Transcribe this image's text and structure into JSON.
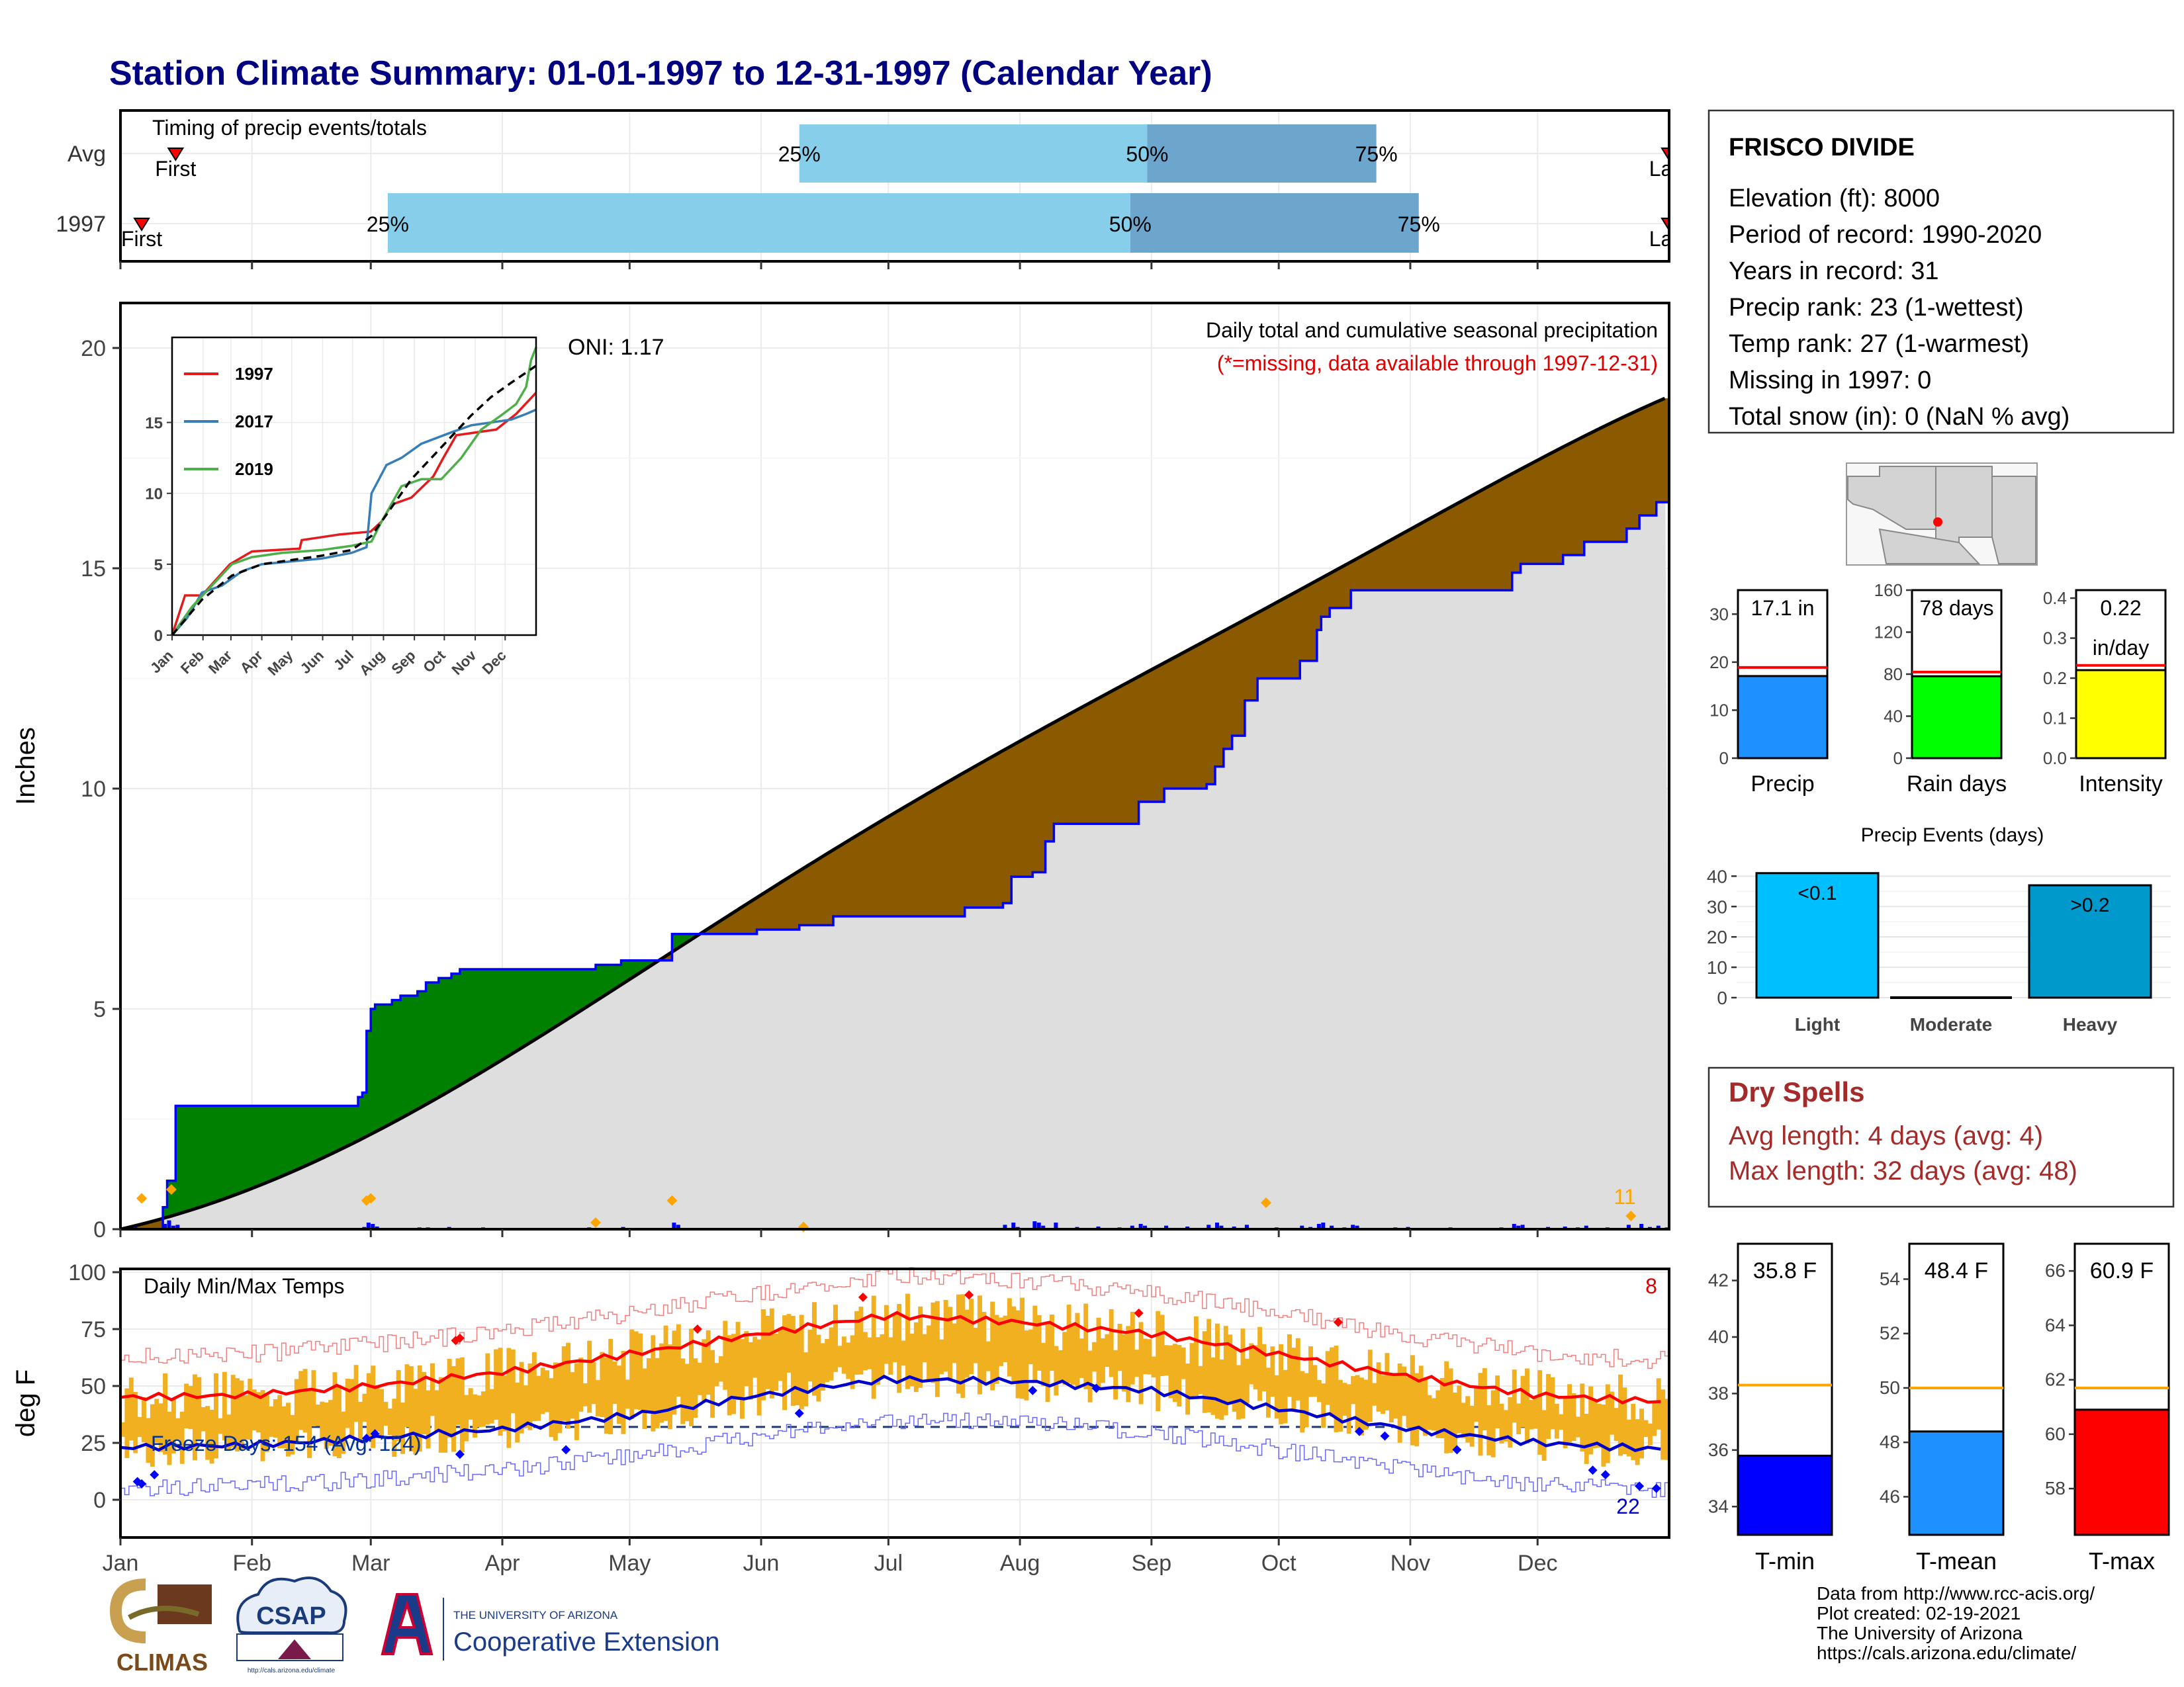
{
  "title": "Station Climate Summary: 01-01-1997 to 12-31-1997 (Calendar Year)",
  "months": [
    "Jan",
    "Feb",
    "Mar",
    "Apr",
    "May",
    "Jun",
    "Jul",
    "Aug",
    "Sep",
    "Oct",
    "Nov",
    "Dec"
  ],
  "timing": {
    "label": "Timing of precip events/totals",
    "rows": [
      {
        "name": "Avg",
        "first_day": 13,
        "last_day": 365,
        "q25": 160,
        "q50": 242,
        "q75": 296,
        "first_label": "First",
        "last_label": "Last"
      },
      {
        "name": "1997",
        "first_day": 5,
        "last_day": 365,
        "q25": 63,
        "q50": 238,
        "q75": 306,
        "first_label": "First",
        "last_label": "Last"
      }
    ],
    "q_labels": [
      "25%",
      "50%",
      "75%"
    ]
  },
  "precip": {
    "ylabel": "Inches",
    "yticks": [
      0,
      5,
      10,
      15,
      20
    ],
    "note": "Daily total and cumulative seasonal precipitation",
    "missing_note": "(*=missing, data available through 1997-12-31)",
    "oni": "ONI: 1.17",
    "count_label": "11",
    "observed_cum": [
      [
        0,
        0
      ],
      [
        10,
        0.5
      ],
      [
        11,
        1.1
      ],
      [
        12,
        1.1
      ],
      [
        13,
        2.8
      ],
      [
        30,
        2.8
      ],
      [
        55,
        2.8
      ],
      [
        56,
        3.0
      ],
      [
        57,
        3.1
      ],
      [
        58,
        4.5
      ],
      [
        59,
        5.0
      ],
      [
        60,
        5.1
      ],
      [
        64,
        5.2
      ],
      [
        66,
        5.3
      ],
      [
        70,
        5.4
      ],
      [
        72,
        5.6
      ],
      [
        75,
        5.7
      ],
      [
        78,
        5.8
      ],
      [
        80,
        5.9
      ],
      [
        95,
        5.9
      ],
      [
        110,
        5.9
      ],
      [
        112,
        6.0
      ],
      [
        118,
        6.1
      ],
      [
        128,
        6.1
      ],
      [
        130,
        6.7
      ],
      [
        145,
        6.7
      ],
      [
        150,
        6.8
      ],
      [
        160,
        6.9
      ],
      [
        168,
        7.1
      ],
      [
        185,
        7.1
      ],
      [
        199,
        7.3
      ],
      [
        205,
        7.3
      ],
      [
        208,
        7.4
      ],
      [
        210,
        8.0
      ],
      [
        215,
        8.1
      ],
      [
        218,
        8.8
      ],
      [
        220,
        9.2
      ],
      [
        225,
        9.2
      ],
      [
        238,
        9.2
      ],
      [
        240,
        9.7
      ],
      [
        246,
        10.0
      ],
      [
        256,
        10.1
      ],
      [
        258,
        10.5
      ],
      [
        260,
        10.9
      ],
      [
        262,
        11.2
      ],
      [
        265,
        12.0
      ],
      [
        268,
        12.5
      ],
      [
        272,
        12.5
      ],
      [
        278,
        12.9
      ],
      [
        282,
        13.6
      ],
      [
        283,
        13.9
      ],
      [
        285,
        14.1
      ],
      [
        290,
        14.5
      ],
      [
        325,
        14.5
      ],
      [
        328,
        14.9
      ],
      [
        330,
        15.1
      ],
      [
        340,
        15.3
      ],
      [
        345,
        15.6
      ],
      [
        355,
        15.9
      ],
      [
        358,
        16.2
      ],
      [
        362,
        16.5
      ],
      [
        365,
        17.1
      ]
    ],
    "avg_end": 18.9,
    "year_end": 17.1,
    "daily_bars": [
      [
        3,
        0.05
      ],
      [
        10,
        0.12
      ],
      [
        11,
        0.2
      ],
      [
        12,
        0.08
      ],
      [
        13,
        0.1
      ],
      [
        45,
        0.03
      ],
      [
        47,
        0.02
      ],
      [
        57,
        0.05
      ],
      [
        58,
        0.15
      ],
      [
        59,
        0.12
      ],
      [
        60,
        0.06
      ],
      [
        62,
        0.03
      ],
      [
        64,
        0.03
      ],
      [
        68,
        0.03
      ],
      [
        70,
        0.04
      ],
      [
        72,
        0.04
      ],
      [
        75,
        0.02
      ],
      [
        77,
        0.05
      ],
      [
        80,
        0.03
      ],
      [
        85,
        0.04
      ],
      [
        88,
        0.03
      ],
      [
        110,
        0.04
      ],
      [
        112,
        0.02
      ],
      [
        118,
        0.05
      ],
      [
        120,
        0.03
      ],
      [
        129,
        0.02
      ],
      [
        130,
        0.15
      ],
      [
        131,
        0.1
      ],
      [
        150,
        0.03
      ],
      [
        160,
        0.04
      ],
      [
        163,
        0.02
      ],
      [
        170,
        0.02
      ],
      [
        175,
        0.02
      ],
      [
        180,
        0.03
      ],
      [
        185,
        0.03
      ],
      [
        190,
        0.03
      ],
      [
        195,
        0.02
      ],
      [
        208,
        0.1
      ],
      [
        210,
        0.15
      ],
      [
        211,
        0.05
      ],
      [
        215,
        0.18
      ],
      [
        216,
        0.15
      ],
      [
        217,
        0.08
      ],
      [
        220,
        0.15
      ],
      [
        225,
        0.05
      ],
      [
        230,
        0.06
      ],
      [
        235,
        0.04
      ],
      [
        238,
        0.08
      ],
      [
        240,
        0.12
      ],
      [
        241,
        0.08
      ],
      [
        246,
        0.08
      ],
      [
        251,
        0.06
      ],
      [
        256,
        0.1
      ],
      [
        258,
        0.15
      ],
      [
        259,
        0.08
      ],
      [
        262,
        0.06
      ],
      [
        265,
        0.1
      ],
      [
        268,
        0.03
      ],
      [
        272,
        0.04
      ],
      [
        276,
        0.03
      ],
      [
        278,
        0.08
      ],
      [
        280,
        0.05
      ],
      [
        282,
        0.12
      ],
      [
        283,
        0.15
      ],
      [
        285,
        0.08
      ],
      [
        288,
        0.04
      ],
      [
        290,
        0.1
      ],
      [
        291,
        0.08
      ],
      [
        300,
        0.04
      ],
      [
        303,
        0.05
      ],
      [
        310,
        0.03
      ],
      [
        313,
        0.04
      ],
      [
        316,
        0.03
      ],
      [
        320,
        0.02
      ],
      [
        325,
        0.04
      ],
      [
        328,
        0.12
      ],
      [
        329,
        0.08
      ],
      [
        330,
        0.1
      ],
      [
        332,
        0.03
      ],
      [
        336,
        0.05
      ],
      [
        340,
        0.06
      ],
      [
        343,
        0.04
      ],
      [
        345,
        0.08
      ],
      [
        350,
        0.04
      ],
      [
        355,
        0.1
      ],
      [
        358,
        0.12
      ],
      [
        360,
        0.05
      ],
      [
        362,
        0.08
      ],
      [
        364,
        0.04
      ]
    ],
    "flag_days": [
      [
        5,
        0.7
      ],
      [
        12,
        0.9
      ],
      [
        58,
        0.65
      ],
      [
        59,
        0.7
      ],
      [
        112,
        0.15
      ],
      [
        130,
        0.65
      ],
      [
        161,
        0.05
      ],
      [
        270,
        0.6
      ],
      [
        356,
        0.3
      ]
    ]
  },
  "inset": {
    "yticks": [
      0,
      5,
      10,
      15
    ],
    "series": [
      {
        "name": "1997",
        "color": "#e41a1c",
        "points": [
          [
            0,
            0
          ],
          [
            13,
            2.8
          ],
          [
            30,
            2.8
          ],
          [
            58,
            5.0
          ],
          [
            80,
            5.9
          ],
          [
            128,
            6.1
          ],
          [
            130,
            6.7
          ],
          [
            168,
            7.1
          ],
          [
            199,
            7.3
          ],
          [
            210,
            8.0
          ],
          [
            220,
            9.2
          ],
          [
            240,
            9.7
          ],
          [
            262,
            11.2
          ],
          [
            272,
            12.5
          ],
          [
            285,
            14.1
          ],
          [
            325,
            14.5
          ],
          [
            345,
            15.6
          ],
          [
            365,
            17.1
          ]
        ]
      },
      {
        "name": "2017",
        "color": "#377eb8",
        "points": [
          [
            0,
            0
          ],
          [
            15,
            1.2
          ],
          [
            30,
            3.0
          ],
          [
            50,
            3.5
          ],
          [
            70,
            4.5
          ],
          [
            90,
            5.0
          ],
          [
            150,
            5.4
          ],
          [
            180,
            5.8
          ],
          [
            195,
            6.2
          ],
          [
            200,
            10.0
          ],
          [
            215,
            12.0
          ],
          [
            230,
            12.5
          ],
          [
            250,
            13.5
          ],
          [
            280,
            14.3
          ],
          [
            300,
            14.8
          ],
          [
            320,
            15.0
          ],
          [
            340,
            15.2
          ],
          [
            355,
            15.6
          ],
          [
            365,
            15.9
          ]
        ]
      },
      {
        "name": "2019",
        "color": "#4daf4a",
        "points": [
          [
            0,
            0
          ],
          [
            20,
            2.0
          ],
          [
            40,
            3.5
          ],
          [
            60,
            5.0
          ],
          [
            80,
            5.5
          ],
          [
            110,
            5.8
          ],
          [
            150,
            6.0
          ],
          [
            180,
            6.3
          ],
          [
            200,
            6.6
          ],
          [
            210,
            8.0
          ],
          [
            230,
            10.5
          ],
          [
            250,
            11.0
          ],
          [
            270,
            11.0
          ],
          [
            290,
            12.5
          ],
          [
            310,
            14.5
          ],
          [
            330,
            15.5
          ],
          [
            345,
            16.3
          ],
          [
            355,
            17.5
          ],
          [
            360,
            19.4
          ],
          [
            365,
            20.3
          ]
        ]
      }
    ],
    "avg_points": [
      [
        0,
        0
      ],
      [
        30,
        2.5
      ],
      [
        60,
        4.2
      ],
      [
        90,
        5.0
      ],
      [
        120,
        5.3
      ],
      [
        150,
        5.6
      ],
      [
        180,
        6.0
      ],
      [
        200,
        7.0
      ],
      [
        220,
        9.0
      ],
      [
        240,
        11.0
      ],
      [
        260,
        12.5
      ],
      [
        280,
        14.0
      ],
      [
        300,
        15.5
      ],
      [
        320,
        16.8
      ],
      [
        340,
        17.8
      ],
      [
        365,
        19.0
      ]
    ]
  },
  "temps": {
    "title": "Daily Min/Max Temps",
    "ylabel": "deg F",
    "yticks": [
      0,
      25,
      50,
      75,
      100
    ],
    "freeze_label": "Freeze Days: 154 (Avg: 124)",
    "freeze_level": 32,
    "hot_count": "8",
    "cold_count": "22",
    "avg_max": [
      [
        0,
        45
      ],
      [
        30,
        46
      ],
      [
        59,
        50
      ],
      [
        90,
        56
      ],
      [
        120,
        64
      ],
      [
        151,
        73
      ],
      [
        181,
        81
      ],
      [
        212,
        78
      ],
      [
        243,
        73
      ],
      [
        273,
        64
      ],
      [
        304,
        54
      ],
      [
        334,
        46
      ],
      [
        365,
        43
      ]
    ],
    "avg_min": [
      [
        0,
        23
      ],
      [
        30,
        24
      ],
      [
        59,
        27
      ],
      [
        90,
        31
      ],
      [
        120,
        37
      ],
      [
        151,
        46
      ],
      [
        181,
        53
      ],
      [
        212,
        52
      ],
      [
        243,
        48
      ],
      [
        273,
        40
      ],
      [
        304,
        31
      ],
      [
        334,
        25
      ],
      [
        365,
        22
      ]
    ]
  },
  "station": {
    "name": "FRISCO DIVIDE",
    "lines": [
      "Elevation (ft): 8000",
      "Period of record: 1990-2020",
      "Years in record: 31",
      "Precip rank: 23 (1-wettest)",
      "Temp rank: 27 (1-warmest)",
      "Missing in 1997: 0",
      "Total snow (in): 0 (NaN % avg)"
    ]
  },
  "mini_precip": [
    {
      "label": "Precip",
      "value": 17.1,
      "avg": 18.9,
      "value_text": "17.1 in",
      "value_text2": "",
      "ymax": 35,
      "yticks": [
        0,
        10,
        20,
        30
      ],
      "color": "#1e90ff"
    },
    {
      "label": "Rain days",
      "value": 78,
      "avg": 82,
      "value_text": "78 days",
      "value_text2": "",
      "ymax": 160,
      "yticks": [
        0,
        40,
        80,
        120,
        160
      ],
      "color": "#00ff00"
    },
    {
      "label": "Intensity",
      "value": 0.22,
      "avg": 0.232,
      "value_text": "0.22",
      "value_text2": "in/day",
      "ymax": 0.42,
      "yticks": [
        0.0,
        0.1,
        0.2,
        0.3,
        0.4
      ],
      "color": "#ffff00"
    }
  ],
  "events": {
    "title": "Precip Events (days)",
    "yticks": [
      0,
      10,
      20,
      30,
      40
    ],
    "bars": [
      {
        "label": "Light",
        "value": 41,
        "text": "<0.1",
        "color": "#00bfff"
      },
      {
        "label": "Moderate",
        "value": 0,
        "text": "",
        "color": "#2e8b57"
      },
      {
        "label": "Heavy",
        "value": 37,
        "text": ">0.2",
        "color": "#0099cc"
      }
    ]
  },
  "dry": {
    "title": "Dry Spells",
    "avg_line": "Avg length: 4 days (avg: 4)",
    "max_line": "Max length: 32 days (avg: 48)"
  },
  "mini_temp": [
    {
      "label": "T-min",
      "value": 35.8,
      "avg": 38.3,
      "text": "35.8 F",
      "ymin": 33,
      "ymax": 43.3,
      "yticks": [
        34,
        36,
        38,
        40,
        42
      ],
      "color": "#0000ff"
    },
    {
      "label": "T-mean",
      "value": 48.4,
      "avg": 50.0,
      "text": "48.4 F",
      "ymin": 44.6,
      "ymax": 55.3,
      "yticks": [
        46,
        48,
        50,
        52,
        54
      ],
      "color": "#1e90ff"
    },
    {
      "label": "T-max",
      "value": 60.9,
      "avg": 61.7,
      "text": "60.9 F",
      "ymin": 56.3,
      "ymax": 67.0,
      "yticks": [
        58,
        60,
        62,
        64,
        66
      ],
      "color": "#ff0000"
    }
  ],
  "logos": {
    "climas": "CLIMAS",
    "csap": "CSAP",
    "csap_url": "http://cals.arizona.edu/climate",
    "ua_small": "THE UNIVERSITY OF ARIZONA",
    "ua_big": "Cooperative Extension"
  },
  "credits": [
    "Data from http://www.rcc-acis.org/",
    "Plot created: 02-19-2021",
    "The University of Arizona",
    "https://cals.arizona.edu/climate/"
  ]
}
